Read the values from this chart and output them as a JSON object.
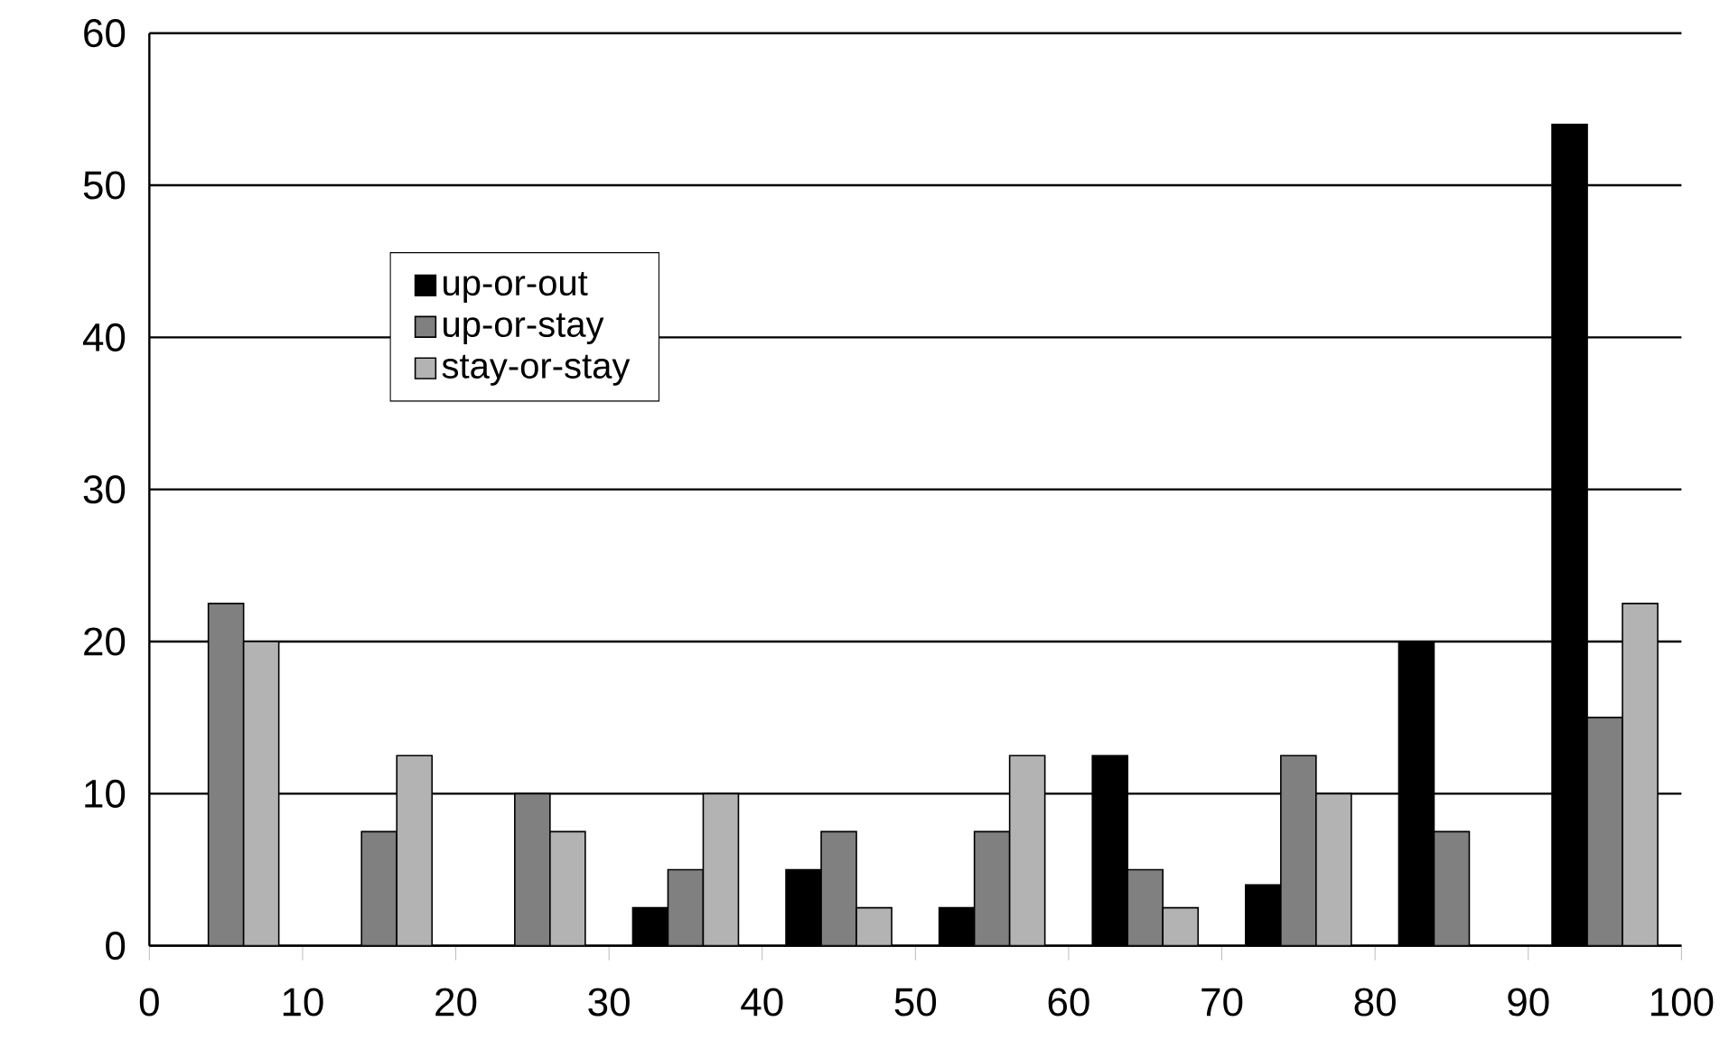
{
  "chart_data": {
    "type": "bar",
    "x": [
      5,
      15,
      25,
      35,
      45,
      55,
      65,
      75,
      85,
      95
    ],
    "series": [
      {
        "name": "up-or-out",
        "color": "#000000",
        "values": [
          null,
          null,
          null,
          2.5,
          5,
          2.5,
          12.5,
          4,
          20,
          54
        ]
      },
      {
        "name": "up-or-stay",
        "color": "#808080",
        "values": [
          22.5,
          7.5,
          10,
          5,
          7.5,
          7.5,
          5,
          12.5,
          7.5,
          15
        ]
      },
      {
        "name": "stay-or-stay",
        "color": "#b3b3b3",
        "values": [
          20,
          12.5,
          7.5,
          10,
          2.5,
          12.5,
          2.5,
          10,
          null,
          22.5
        ]
      }
    ],
    "xlim": [
      0,
      100
    ],
    "xticks": [
      0,
      10,
      20,
      30,
      40,
      50,
      60,
      70,
      80,
      90,
      100
    ],
    "ylim": [
      0,
      60
    ],
    "yticks": [
      0,
      10,
      20,
      30,
      40,
      50,
      60
    ],
    "grid": "y",
    "legend": "left"
  }
}
